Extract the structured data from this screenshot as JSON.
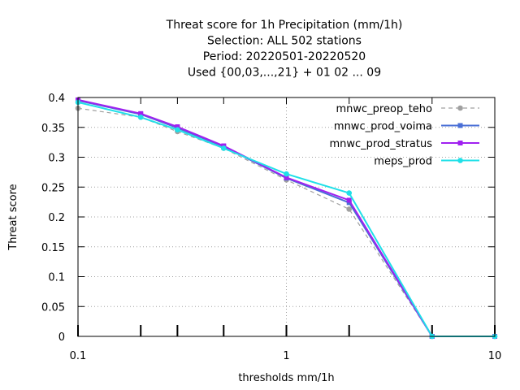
{
  "chart_data": {
    "type": "line",
    "title_lines": [
      "Threat score  for 1h Precipitation (mm/1h)",
      "Selection: ALL    502 stations",
      "Period: 20220501-20220520",
      "Used {00,03,...,21} + 01 02 ... 09"
    ],
    "xlabel": "thresholds mm/1h",
    "ylabel": "Threat score",
    "xscale": "log",
    "xlim": [
      0.1,
      10
    ],
    "ylim": [
      0,
      0.4
    ],
    "x_tick_labels": [
      "0.1",
      "1",
      "10"
    ],
    "x_tick_values": [
      0.1,
      1,
      10
    ],
    "y_tick_labels": [
      "0",
      "0.05",
      "0.1",
      "0.15",
      "0.2",
      "0.25",
      "0.3",
      "0.35",
      "0.4"
    ],
    "y_tick_values": [
      0,
      0.05,
      0.1,
      0.15,
      0.2,
      0.25,
      0.3,
      0.35,
      0.4
    ],
    "x_minor_ticks": [
      0.2,
      0.3,
      0.5,
      2,
      5
    ],
    "x": [
      0.1,
      0.2,
      0.3,
      0.5,
      1,
      2,
      5,
      10
    ],
    "grid": true,
    "legend_position": "top-right",
    "series": [
      {
        "name": "mnwc_preop_teho",
        "color": "#a0a0a0",
        "dash": "dashed",
        "marker": "circle",
        "values": [
          0.382,
          0.367,
          0.343,
          0.315,
          0.262,
          0.213,
          0.0,
          0.0
        ]
      },
      {
        "name": "mnwc_prod_voima",
        "color": "#4a6fd6",
        "dash": "solid",
        "marker": "square",
        "values": [
          0.395,
          0.372,
          0.349,
          0.318,
          0.265,
          0.224,
          0.0,
          0.0
        ]
      },
      {
        "name": "mnwc_prod_stratus",
        "color": "#a020f0",
        "dash": "solid",
        "marker": "square",
        "values": [
          0.396,
          0.373,
          0.351,
          0.319,
          0.266,
          0.228,
          0.0,
          0.0
        ]
      },
      {
        "name": "meps_prod",
        "color": "#20e0e8",
        "dash": "solid",
        "marker": "circle",
        "values": [
          0.392,
          0.367,
          0.346,
          0.315,
          0.272,
          0.24,
          0.0,
          0.0
        ]
      }
    ]
  }
}
